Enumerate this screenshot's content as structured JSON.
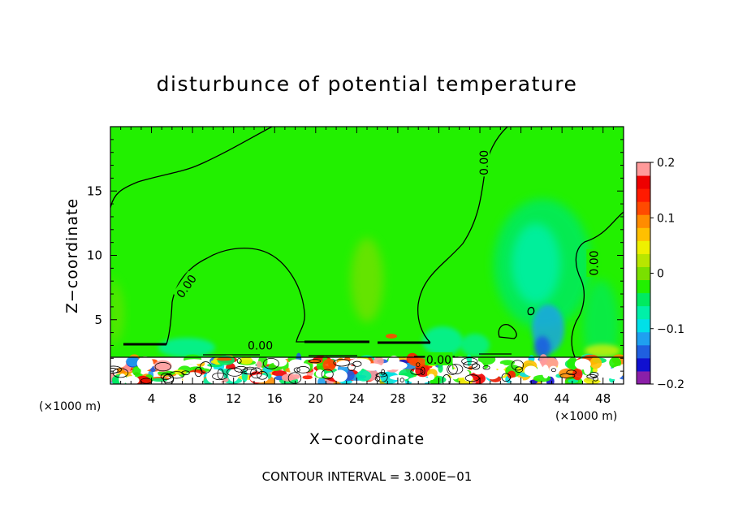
{
  "chart_data": {
    "type": "heatmap",
    "title": "disturbunce of potential temperature",
    "xlabel": "X−coordinate",
    "ylabel": "Z−coordinate",
    "x_unit_left": "(×1000 m)",
    "x_unit_right": "(×1000 m)",
    "xlim": [
      0,
      50
    ],
    "ylim": [
      0,
      20
    ],
    "x_ticks": [
      4,
      8,
      12,
      16,
      20,
      24,
      28,
      32,
      36,
      40,
      44,
      48
    ],
    "y_ticks": [
      5,
      10,
      15
    ],
    "colorbar": {
      "range": [
        -0.2,
        0.2
      ],
      "tick_values": [
        0.2,
        0.1,
        0,
        -0.1,
        -0.2
      ],
      "tick_labels": [
        "0.2",
        "0.1",
        "0",
        "−0.1",
        "−0.2"
      ],
      "colors": [
        "#8b1fa8",
        "#1010d0",
        "#1f5fe0",
        "#1fa0f0",
        "#00e0e8",
        "#00f0a8",
        "#00ea60",
        "#22f000",
        "#7ae000",
        "#b8e600",
        "#eef000",
        "#ffc000",
        "#ff8c00",
        "#ff4a00",
        "#ff1a00",
        "#ee0000",
        "#ff9a9a"
      ]
    },
    "contour_labels": [
      {
        "text": "0.00",
        "x": 14.6,
        "z": 3.0
      },
      {
        "text": "0.00",
        "x": 7.4,
        "z": 7.6
      },
      {
        "text": "0.00",
        "x": 36.4,
        "z": 17.2
      },
      {
        "text": "0.00",
        "x": 47.1,
        "z": 9.4
      },
      {
        "text": "0.00",
        "x": 32.0,
        "z": 1.9
      }
    ],
    "contour_interval": "CONTOUR INTERVAL = 3.000E−01",
    "field_features": [
      {
        "name": "background",
        "value": 0.0
      },
      {
        "name": "bottom-band",
        "zmax": 2.1,
        "value_range": [
          -0.2,
          0.2
        ]
      },
      {
        "name": "weak-warm-bubble",
        "x": 25.5,
        "z": 8.5,
        "value": 0.03
      },
      {
        "name": "weak-cool-plume",
        "x": 41.5,
        "z": 10,
        "value": -0.05
      }
    ]
  }
}
